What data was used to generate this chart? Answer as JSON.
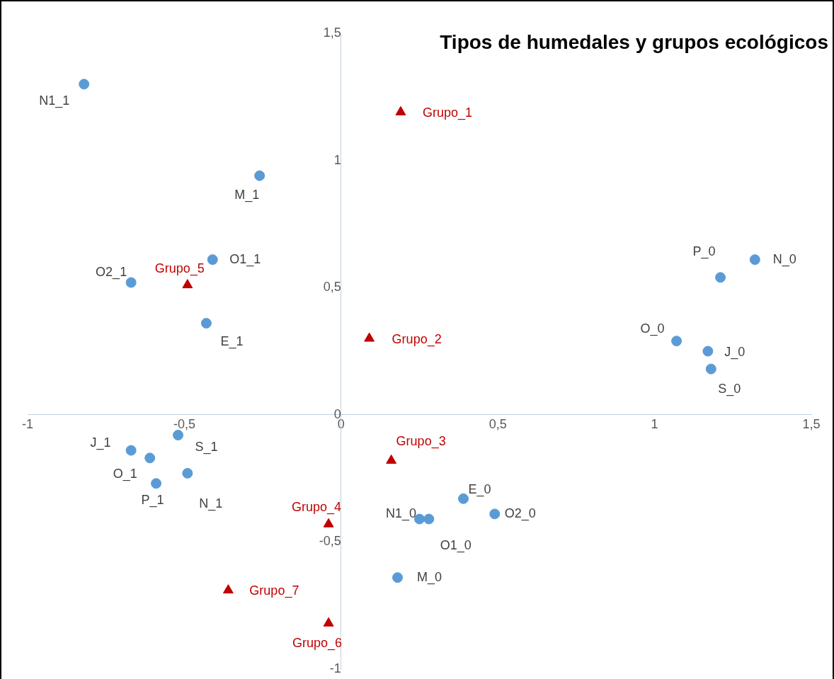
{
  "chart_data": {
    "type": "scatter",
    "title": "Tipos de humedales  y grupos ecológicos",
    "xlim": [
      -1,
      1.5
    ],
    "xticks": [
      -1,
      {
        "value": -0.5,
        "label": "-0,5"
      },
      0,
      {
        "value": 0.5,
        "label": "0,5"
      },
      1,
      {
        "value": 1.5,
        "label": "1,5"
      }
    ],
    "ylim": [
      -1,
      1.5
    ],
    "yticks": [
      -1,
      {
        "value": -0.5,
        "label": "-0,5"
      },
      0,
      {
        "value": 0.5,
        "label": "0,5"
      },
      1,
      {
        "value": 1.5,
        "label": "1,5"
      }
    ],
    "grid": false,
    "legend": false,
    "series": [
      {
        "color": "#5b9bd5",
        "marker": "circle",
        "x": [
          -0.82,
          -0.26,
          -0.41,
          -0.67,
          -0.43,
          1.21,
          1.32,
          1.07,
          1.17,
          1.18,
          -0.67,
          -0.61,
          -0.59,
          -0.52,
          -0.49,
          0.39,
          0.49,
          0.25,
          0.28,
          0.18
        ],
        "values": [
          1.3,
          0.94,
          0.61,
          0.52,
          0.36,
          0.54,
          0.61,
          0.29,
          0.25,
          0.18,
          -0.14,
          -0.17,
          -0.27,
          -0.08,
          -0.23,
          -0.33,
          -0.39,
          -0.41,
          -0.41,
          -0.64
        ]
      },
      {
        "color": "#c00000",
        "marker": "triangle",
        "x": [
          0.19,
          0.09,
          0.16,
          -0.04,
          -0.49,
          -0.04,
          -0.36
        ],
        "values": [
          1.19,
          0.3,
          -0.18,
          -0.43,
          0.51,
          -0.82,
          -0.69
        ]
      }
    ],
    "annotations": [
      {
        "text": "N1_1",
        "x": -0.82,
        "y": 1.3
      },
      {
        "text": "M_1",
        "x": -0.26,
        "y": 0.94
      },
      {
        "text": "O1_1",
        "x": -0.41,
        "y": 0.61
      },
      {
        "text": "O2_1",
        "x": -0.67,
        "y": 0.52
      },
      {
        "text": "E_1",
        "x": -0.43,
        "y": 0.36
      },
      {
        "text": "P_0",
        "x": 1.21,
        "y": 0.54
      },
      {
        "text": "N_0",
        "x": 1.32,
        "y": 0.61
      },
      {
        "text": "O_0",
        "x": 1.07,
        "y": 0.29
      },
      {
        "text": "J_0",
        "x": 1.17,
        "y": 0.25
      },
      {
        "text": "S_0",
        "x": 1.18,
        "y": 0.18
      },
      {
        "text": "J_1",
        "x": -0.67,
        "y": -0.14
      },
      {
        "text": "O_1",
        "x": -0.61,
        "y": -0.17
      },
      {
        "text": "P_1",
        "x": -0.59,
        "y": -0.27
      },
      {
        "text": "S_1",
        "x": -0.52,
        "y": -0.08
      },
      {
        "text": "N_1",
        "x": -0.49,
        "y": -0.23
      },
      {
        "text": "E_0",
        "x": 0.39,
        "y": -0.33
      },
      {
        "text": "O2_0",
        "x": 0.49,
        "y": -0.39
      },
      {
        "text": "N1_0",
        "x": 0.25,
        "y": -0.41
      },
      {
        "text": "O1_0",
        "x": 0.28,
        "y": -0.41
      },
      {
        "text": "M_0",
        "x": 0.18,
        "y": -0.64
      },
      {
        "text": "Grupo_1",
        "x": 0.19,
        "y": 1.19
      },
      {
        "text": "Grupo_2",
        "x": 0.09,
        "y": 0.3
      },
      {
        "text": "Grupo_3",
        "x": 0.16,
        "y": -0.18
      },
      {
        "text": "Grupo_4",
        "x": -0.04,
        "y": -0.43
      },
      {
        "text": "Grupo_5",
        "x": -0.49,
        "y": 0.51
      },
      {
        "text": "Grupo_6",
        "x": -0.04,
        "y": -0.82
      },
      {
        "text": "Grupo_7",
        "x": -0.36,
        "y": -0.69
      }
    ]
  }
}
